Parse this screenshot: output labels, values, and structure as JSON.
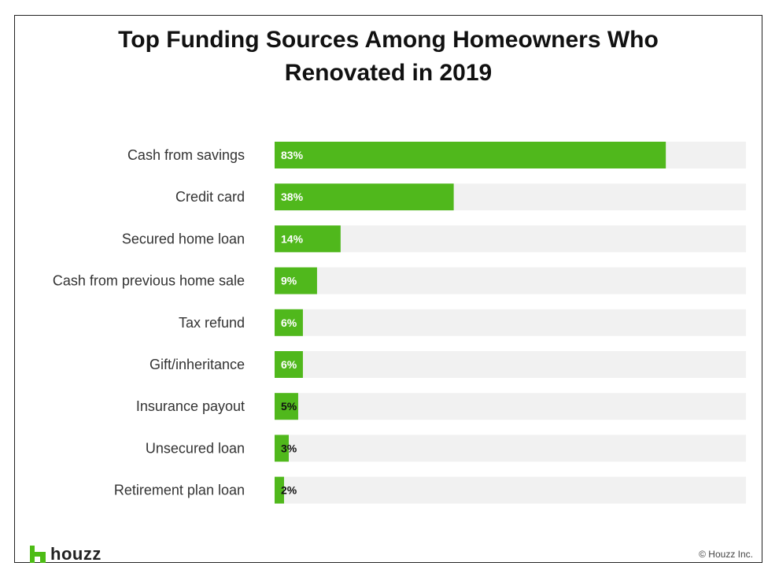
{
  "chart_data": {
    "type": "bar",
    "orientation": "horizontal",
    "title_lines": [
      "Top Funding Sources Among Homeowners Who",
      "Renovated in 2019"
    ],
    "categories": [
      "Cash from savings",
      "Credit card",
      "Secured home loan",
      "Cash from previous home sale",
      "Tax refund",
      "Gift/inheritance",
      "Insurance payout",
      "Unsecured loan",
      "Retirement plan loan"
    ],
    "values": [
      83,
      38,
      14,
      9,
      6,
      6,
      5,
      3,
      2
    ],
    "value_labels": [
      "83%",
      "38%",
      "14%",
      "9%",
      "6%",
      "6%",
      "5%",
      "3%",
      "2%"
    ],
    "xlim": [
      0,
      100
    ],
    "grid": false,
    "bar_color": "#50b81c",
    "track_color": "#f1f1f1"
  },
  "branding": {
    "logo_text": "houzz",
    "logo_color": "#4dbc15",
    "copyright": "© Houzz Inc."
  }
}
